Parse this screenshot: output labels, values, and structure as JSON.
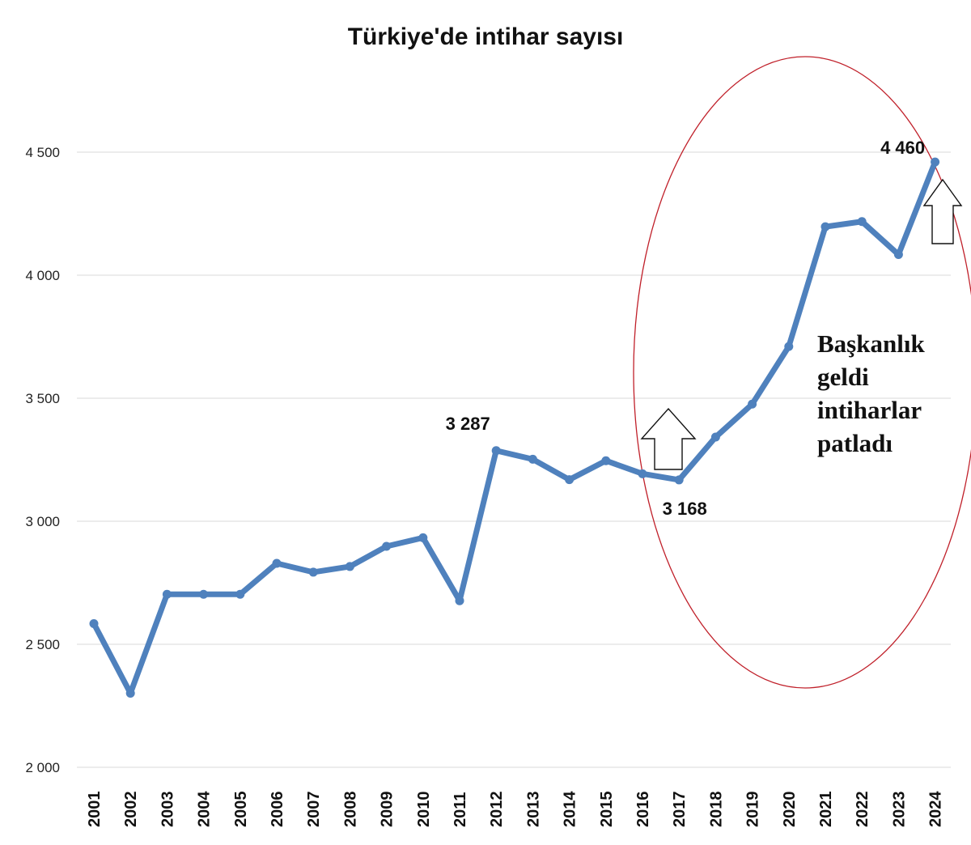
{
  "chart_data": {
    "type": "line",
    "title": "Türkiye'de intihar sayısı",
    "xlabel": "",
    "ylabel": "",
    "ylim": [
      2000,
      4500
    ],
    "yticks": [
      2000,
      2500,
      3000,
      3500,
      4000,
      4500
    ],
    "ytick_labels": [
      "2 000",
      "2 500",
      "3 000",
      "3 500",
      "4 000",
      "4 500"
    ],
    "grid": true,
    "legend": "none",
    "categories": [
      "2001",
      "2002",
      "2003",
      "2004",
      "2005",
      "2006",
      "2007",
      "2008",
      "2009",
      "2010",
      "2011",
      "2012",
      "2013",
      "2014",
      "2015",
      "2016",
      "2017",
      "2018",
      "2019",
      "2020",
      "2021",
      "2022",
      "2023",
      "2024"
    ],
    "series": [
      {
        "values": [
          2584,
          2301,
          2703,
          2703,
          2703,
          2829,
          2793,
          2816,
          2898,
          2933,
          2677,
          3287,
          3252,
          3169,
          3246,
          3193,
          3168,
          3342,
          3476,
          3710,
          4197,
          4218,
          4084,
          4460
        ],
        "color": "#4f81bd"
      }
    ],
    "data_labels": [
      {
        "category": "2012",
        "text": "3 287"
      },
      {
        "category": "2017",
        "text": "3 168"
      },
      {
        "category": "2024",
        "text": "4 460"
      }
    ],
    "annotations": {
      "note_lines": [
        "Başkanlık",
        "geldi",
        "intiharlar",
        "patladı"
      ],
      "highlight_color": "#c0202a",
      "arrows": [
        "up-arrow-2017",
        "up-arrow-2024"
      ]
    }
  }
}
